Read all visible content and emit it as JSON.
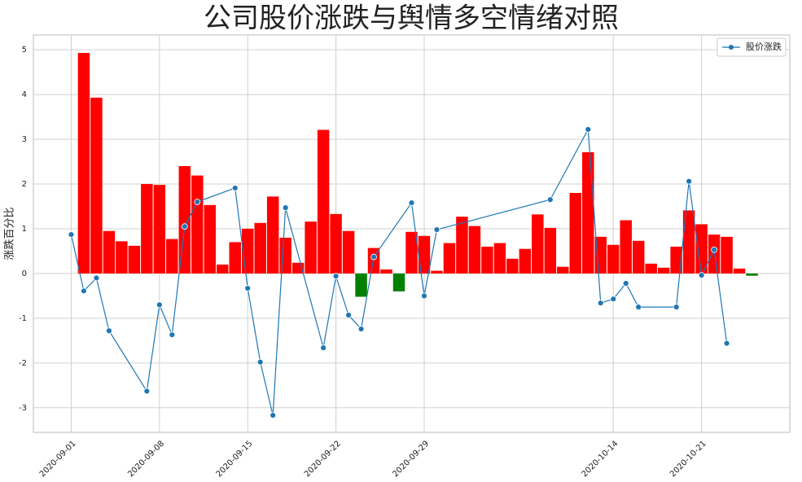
{
  "chart_data": {
    "type": "bar+line",
    "title": "公司股价涨跌与舆情多空情绪对照",
    "y_label": "涨跌百分比",
    "xlim": [
      "2020-08-29",
      "2020-10-28"
    ],
    "xticks": [
      "2020-09-01",
      "2020-09-08",
      "2020-09-15",
      "2020-09-22",
      "2020-09-29",
      "2020-10-14",
      "2020-10-21"
    ],
    "ylim": [
      -3.55,
      5.33
    ],
    "yticks": [
      -3,
      -2,
      -1,
      0,
      1,
      2,
      3,
      4,
      5
    ],
    "grid": true,
    "legend": "upper right",
    "series": [
      {
        "type": "bar",
        "positive_color": "#ff0000",
        "negative_color": "#008000",
        "x": [
          "2020-09-02",
          "2020-09-03",
          "2020-09-04",
          "2020-09-05",
          "2020-09-06",
          "2020-09-07",
          "2020-09-08",
          "2020-09-09",
          "2020-09-10",
          "2020-09-11",
          "2020-09-12",
          "2020-09-13",
          "2020-09-14",
          "2020-09-15",
          "2020-09-16",
          "2020-09-17",
          "2020-09-18",
          "2020-09-19",
          "2020-09-20",
          "2020-09-21",
          "2020-09-22",
          "2020-09-23",
          "2020-09-24",
          "2020-09-25",
          "2020-09-26",
          "2020-09-27",
          "2020-09-28",
          "2020-09-29",
          "2020-09-30",
          "2020-10-01",
          "2020-10-02",
          "2020-10-03",
          "2020-10-04",
          "2020-10-05",
          "2020-10-06",
          "2020-10-07",
          "2020-10-08",
          "2020-10-09",
          "2020-10-10",
          "2020-10-11",
          "2020-10-12",
          "2020-10-13",
          "2020-10-14",
          "2020-10-15",
          "2020-10-16",
          "2020-10-17",
          "2020-10-18",
          "2020-10-19",
          "2020-10-20",
          "2020-10-21",
          "2020-10-22",
          "2020-10-23",
          "2020-10-24",
          "2020-10-25"
        ],
        "values": [
          4.93,
          3.93,
          0.95,
          0.72,
          0.62,
          2.0,
          1.98,
          0.77,
          2.4,
          2.19,
          1.53,
          0.2,
          0.7,
          1.0,
          1.13,
          1.72,
          0.8,
          0.24,
          1.16,
          3.21,
          1.33,
          0.95,
          -0.52,
          0.57,
          0.09,
          -0.4,
          0.93,
          0.84,
          0.06,
          0.68,
          1.27,
          1.06,
          0.6,
          0.68,
          0.33,
          0.55,
          1.32,
          1.02,
          0.15,
          1.8,
          2.71,
          0.82,
          0.64,
          1.19,
          0.73,
          0.22,
          0.13,
          0.6,
          1.41,
          1.1,
          0.87,
          0.82,
          0.11,
          -0.05
        ]
      },
      {
        "type": "line",
        "name": "股价涨跌",
        "color": "#1f77b4",
        "x": [
          "2020-09-01",
          "2020-09-02",
          "2020-09-03",
          "2020-09-04",
          "2020-09-07",
          "2020-09-08",
          "2020-09-09",
          "2020-09-10",
          "2020-09-11",
          "2020-09-14",
          "2020-09-15",
          "2020-09-16",
          "2020-09-17",
          "2020-09-18",
          "2020-09-21",
          "2020-09-22",
          "2020-09-23",
          "2020-09-24",
          "2020-09-25",
          "2020-09-28",
          "2020-09-29",
          "2020-09-30",
          "2020-10-09",
          "2020-10-12",
          "2020-10-13",
          "2020-10-14",
          "2020-10-15",
          "2020-10-16",
          "2020-10-19",
          "2020-10-20",
          "2020-10-21",
          "2020-10-22",
          "2020-10-23"
        ],
        "values": [
          0.87,
          -0.39,
          -0.1,
          -1.28,
          -2.63,
          -0.7,
          -1.37,
          1.05,
          1.6,
          1.91,
          -0.33,
          -1.98,
          -3.17,
          1.47,
          -1.66,
          -0.06,
          -0.93,
          -1.24,
          0.37,
          1.58,
          -0.5,
          0.98,
          1.65,
          3.22,
          -0.66,
          -0.57,
          -0.22,
          -0.75,
          -0.75,
          2.06,
          -0.04,
          0.53,
          -1.56
        ]
      }
    ]
  }
}
